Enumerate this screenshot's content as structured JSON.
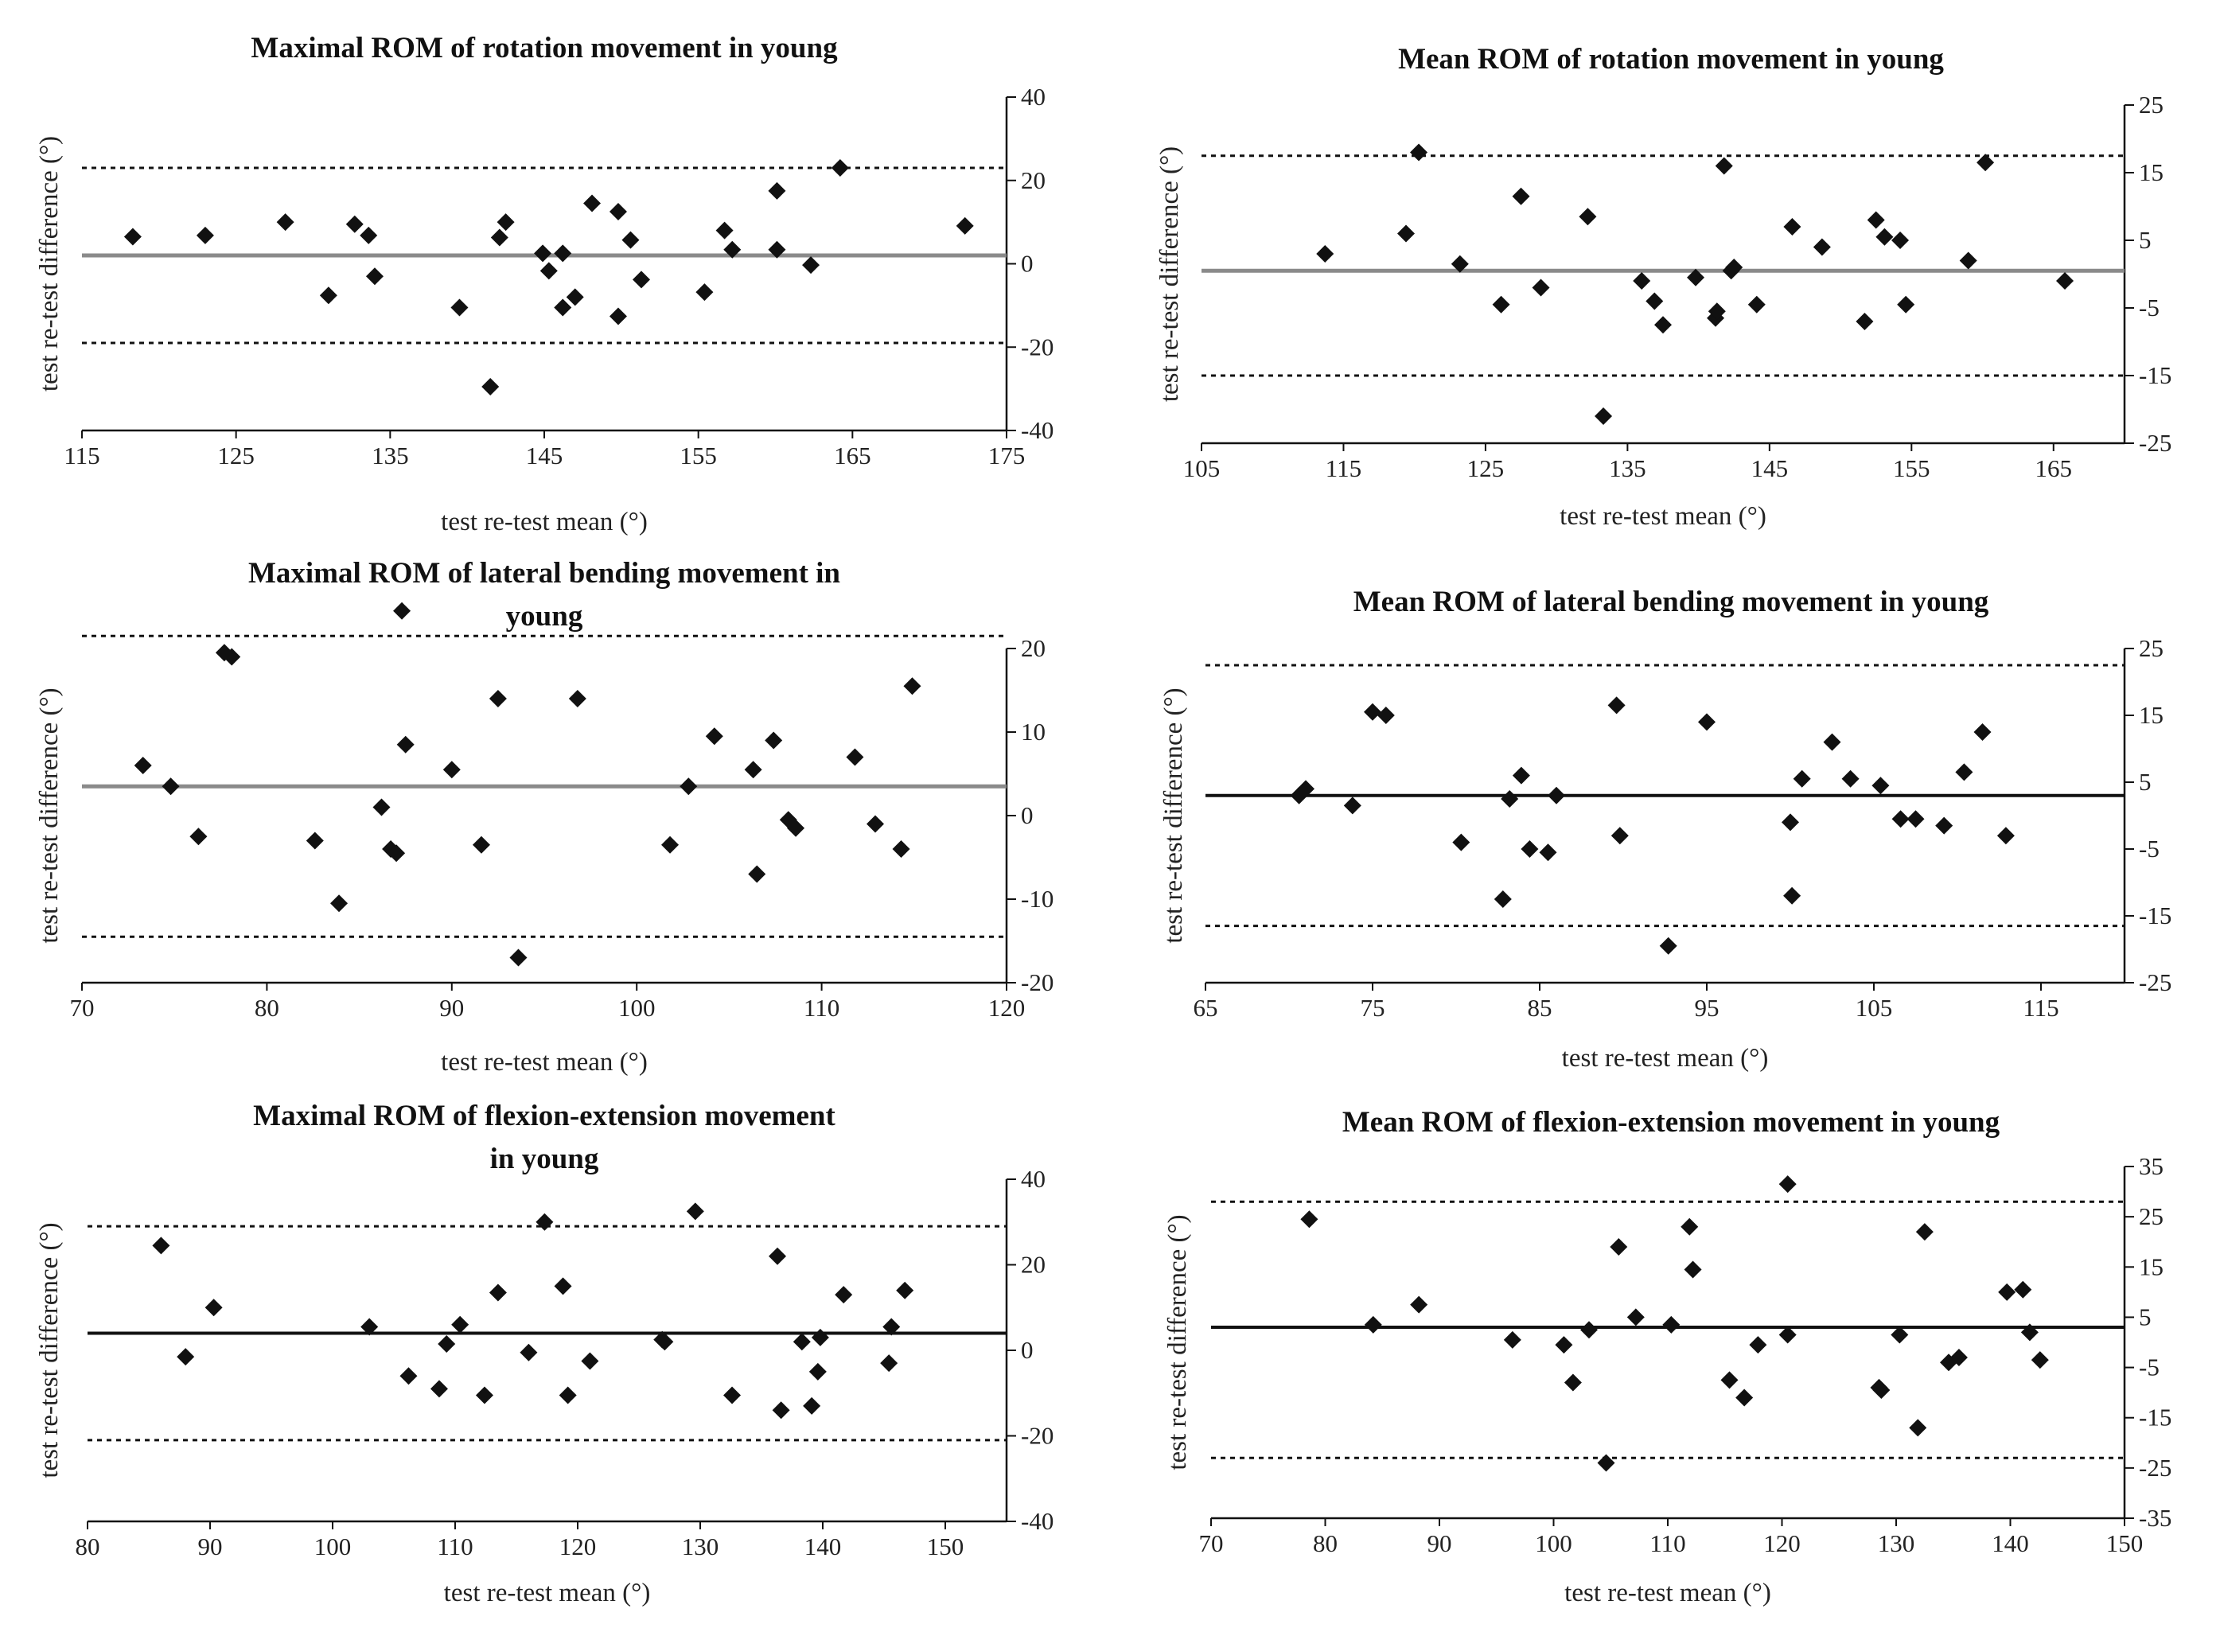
{
  "chart_data": [
    {
      "type": "scatter",
      "title": "Maximal ROM of rotation movement in young",
      "xlabel": "test re-test mean (°)",
      "ylabel": "test re-test difference (°)",
      "xlim": [
        115,
        175
      ],
      "ylim": [
        -40,
        40
      ],
      "xticks": [
        "115",
        "125",
        "135",
        "145",
        "155",
        "165",
        "175"
      ],
      "yticks": [
        "40",
        "20",
        "0",
        "-20",
        "-40"
      ],
      "mean_line": 2,
      "limits": [
        23,
        -19
      ],
      "x": [
        118.3,
        123,
        128.2,
        132.7,
        133.6,
        134,
        131,
        139.5,
        141.5,
        142.1,
        142.5,
        144.9,
        145.3,
        146.2,
        146.2,
        147,
        148.1,
        149.8,
        149.8,
        150.6,
        151.3,
        155.4,
        156.7,
        157.2,
        160.1,
        160.1,
        162.3,
        164.2,
        172.3
      ],
      "y": [
        6.5,
        6.8,
        10,
        9.5,
        6.8,
        -3,
        -7.6,
        -10.5,
        -29.5,
        6.3,
        10,
        2.5,
        -1.7,
        2.5,
        -10.5,
        -8,
        14.5,
        12.5,
        -12.6,
        5.7,
        -3.8,
        -6.8,
        8,
        3.4,
        17.5,
        3.4,
        -0.3,
        23,
        9.1
      ]
    },
    {
      "type": "scatter",
      "title": "Mean ROM of rotation movement in young",
      "xlabel": "test re-test mean (°)",
      "ylabel": "test re-test difference (°)",
      "xlim": [
        105,
        170
      ],
      "ylim": [
        -25,
        25
      ],
      "xticks": [
        "105",
        "115",
        "125",
        "135",
        "145",
        "155",
        "165"
      ],
      "yticks": [
        "25",
        "15",
        "5",
        "-5",
        "-15",
        "-25"
      ],
      "mean_line": 0.5,
      "limits": [
        17.5,
        -15
      ],
      "x": [
        113.7,
        119.4,
        120.3,
        123.2,
        126.1,
        127.5,
        128.9,
        132.2,
        133.3,
        136,
        136.9,
        137.5,
        139.8,
        141.2,
        141.3,
        141.8,
        142.3,
        142.5,
        144.1,
        146.6,
        148.7,
        151.7,
        152.5,
        153.1,
        154.2,
        154.6,
        159,
        160.2,
        165.8
      ],
      "y": [
        3,
        6,
        18,
        1.5,
        -4.5,
        11.5,
        -2,
        8.5,
        -21,
        -1,
        -4,
        -7.5,
        -0.5,
        -6.5,
        -5.5,
        16,
        0.5,
        1,
        -4.5,
        7,
        4,
        -7,
        8,
        5.5,
        5,
        -4.5,
        2,
        16.5,
        -1
      ]
    },
    {
      "type": "scatter",
      "title": "Maximal ROM of lateral bending movement in young",
      "xlabel": "test re-test mean (°)",
      "ylabel": "test re-test difference (°)",
      "xlim": [
        70,
        120
      ],
      "ylim": [
        -20,
        20
      ],
      "xticks": [
        "70",
        "80",
        "90",
        "100",
        "110",
        "120"
      ],
      "yticks": [
        "20",
        "10",
        "0",
        "-10",
        "-20"
      ],
      "mean_line": 3.5,
      "limits": [
        21.5,
        -14.5
      ],
      "x": [
        73.3,
        74.8,
        76.3,
        77.7,
        78.1,
        82.6,
        83.9,
        86.2,
        86.7,
        87,
        87.3,
        87.5,
        90,
        91.6,
        92.5,
        93.6,
        96.8,
        101.8,
        102.8,
        104.2,
        106.3,
        106.5,
        107.4,
        108.2,
        108.6,
        111.8,
        112.9,
        114.3,
        114.9
      ],
      "y": [
        6,
        3.5,
        -2.5,
        19.5,
        19,
        -3,
        -10.5,
        1,
        -4,
        -4.5,
        24.5,
        8.5,
        5.5,
        -3.5,
        14,
        -17,
        14,
        -3.5,
        3.5,
        9.5,
        5.5,
        -7,
        9,
        -0.5,
        -1.5,
        7,
        -1,
        -4,
        15.5
      ]
    },
    {
      "type": "scatter",
      "title": "Mean ROM of lateral bending movement in young",
      "xlabel": "test re-test mean (°)",
      "ylabel": "test re-test difference (°)",
      "xlim": [
        65,
        120
      ],
      "ylim": [
        -25,
        25
      ],
      "xticks": [
        "65",
        "75",
        "85",
        "95",
        "105",
        "115"
      ],
      "yticks": [
        "25",
        "15",
        "5",
        "-5",
        "-15",
        "-25"
      ],
      "mean_line": 3,
      "limits": [
        22.5,
        -16.5
      ],
      "x": [
        70.6,
        71,
        73.8,
        75,
        75.8,
        80.3,
        82.8,
        83.2,
        83.9,
        84.4,
        85.5,
        86,
        89.6,
        89.8,
        92.7,
        95,
        100,
        100.1,
        100.7,
        102.5,
        103.6,
        105.4,
        106.6,
        107.5,
        109.2,
        110.4,
        111.5,
        112.9
      ],
      "y": [
        3,
        4,
        1.5,
        15.5,
        15,
        -4,
        -12.5,
        2.5,
        6,
        -5,
        -5.5,
        3,
        16.5,
        -3,
        -19.5,
        14,
        -1,
        -12,
        5.5,
        11,
        5.5,
        4.5,
        -0.5,
        -0.5,
        -1.5,
        6.5,
        12.5,
        -3
      ]
    },
    {
      "type": "scatter",
      "title": "Maximal ROM of flexion-extension movement in young",
      "xlabel": "test re-test mean (°)",
      "ylabel": "test re-test difference (°)",
      "xlim": [
        80,
        155
      ],
      "ylim": [
        -40,
        40
      ],
      "xticks": [
        "80",
        "90",
        "100",
        "110",
        "120",
        "130",
        "140",
        "150"
      ],
      "yticks": [
        "40",
        "20",
        "0",
        "-20",
        "-40"
      ],
      "mean_line": 4,
      "limits": [
        29,
        -21
      ],
      "x": [
        86,
        88,
        90.3,
        103,
        106.2,
        108.7,
        109.3,
        110.4,
        112.4,
        113.5,
        116,
        117.3,
        118.8,
        119.2,
        121,
        126.9,
        127.1,
        129.6,
        132.6,
        136.3,
        136.6,
        138.3,
        139.1,
        139.6,
        139.8,
        141.7,
        145.4,
        145.6,
        146.7
      ],
      "y": [
        24.5,
        -1.5,
        10,
        5.5,
        -6,
        -9,
        1.5,
        6,
        -10.5,
        13.5,
        -0.5,
        30,
        15,
        -10.5,
        -2.5,
        2.5,
        2,
        32.5,
        -10.5,
        22,
        -14,
        2,
        -13,
        -5,
        3,
        13,
        -3,
        5.5,
        14
      ]
    },
    {
      "type": "scatter",
      "title": "Mean ROM of flexion-extension movement in young",
      "xlabel": "test re-test mean (°)",
      "ylabel": "test re-test difference (°)",
      "xlim": [
        70,
        150
      ],
      "ylim": [
        -35,
        35
      ],
      "xticks": [
        "70",
        "80",
        "90",
        "100",
        "110",
        "120",
        "130",
        "140",
        "150"
      ],
      "yticks": [
        "35",
        "25",
        "15",
        "5",
        "-5",
        "-15",
        "-25",
        "-35"
      ],
      "mean_line": 3,
      "limits": [
        28,
        -23
      ],
      "x": [
        78.6,
        84.2,
        88.2,
        96.4,
        100.9,
        101.7,
        103.1,
        104.6,
        105.7,
        107.2,
        110.3,
        111.9,
        112.2,
        115.4,
        116.7,
        117.9,
        120.5,
        120.5,
        128.5,
        128.7,
        130.3,
        131.9,
        132.5,
        134.6,
        135.5,
        139.7,
        141.1,
        141.7,
        142.6
      ],
      "y": [
        24.5,
        3.5,
        7.5,
        0.5,
        -0.5,
        -8,
        2.5,
        -24,
        19,
        5,
        3.5,
        23,
        14.5,
        -7.5,
        -11,
        -0.5,
        31.5,
        1.5,
        -9,
        -9.5,
        1.5,
        -17,
        22,
        -4,
        -3,
        10,
        10.5,
        2,
        -3.5
      ]
    }
  ]
}
